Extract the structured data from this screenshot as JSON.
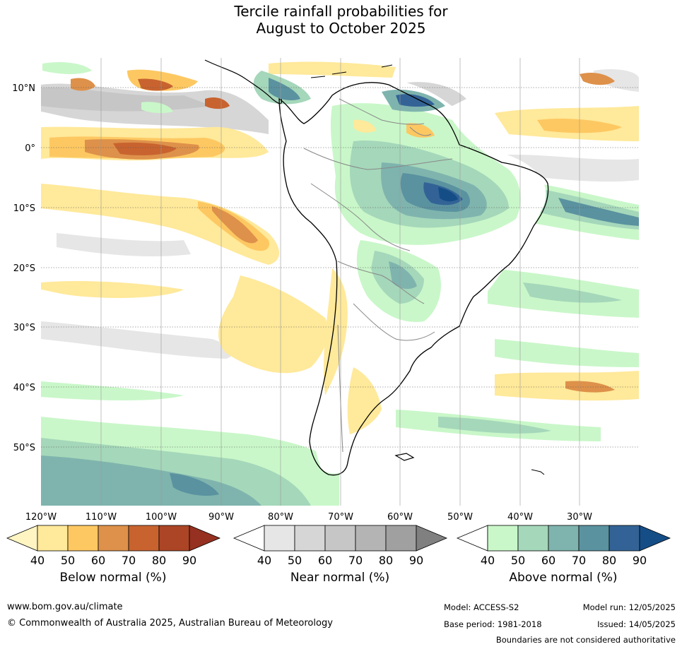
{
  "title": {
    "line1": "Tercile rainfall probabilities for",
    "line2": "August to October 2025"
  },
  "map": {
    "lat_labels": [
      "10°N",
      "0°",
      "10°S",
      "20°S",
      "30°S",
      "40°S",
      "50°S"
    ],
    "lon_labels": [
      "120°W",
      "110°W",
      "100°W",
      "90°W",
      "80°W",
      "70°W",
      "60°W",
      "50°W",
      "40°W",
      "30°W"
    ],
    "colors": {
      "ocean_base": "#ffffff",
      "coast": "#000000",
      "border": "#888888",
      "grid": "#555555"
    }
  },
  "colorbars": [
    {
      "label": "Below normal (%)",
      "ticks": [
        "40",
        "50",
        "60",
        "70",
        "80",
        "90"
      ],
      "colors": [
        "#fff5c2",
        "#ffe99a",
        "#fdc862",
        "#de914a",
        "#c8632f",
        "#ab4526",
        "#963020"
      ]
    },
    {
      "label": "Near normal (%)",
      "ticks": [
        "40",
        "50",
        "60",
        "70",
        "80",
        "90"
      ],
      "colors": [
        "#ffffff",
        "#e6e6e6",
        "#d6d6d6",
        "#c6c6c6",
        "#b4b4b4",
        "#a0a0a0",
        "#808080"
      ]
    },
    {
      "label": "Above normal (%)",
      "ticks": [
        "40",
        "50",
        "60",
        "70",
        "80",
        "90"
      ],
      "colors": [
        "#ffffff",
        "#c9f7c9",
        "#a5d7ba",
        "#7fb4ae",
        "#5a92a0",
        "#336396",
        "#154e87"
      ]
    }
  ],
  "footer": {
    "website": "www.bom.gov.au/climate",
    "copyright": "© Commonwealth of Australia 2025, Australian Bureau of Meteorology",
    "model": "Model: ACCESS-S2",
    "base_period": "Base period: 1981-2018",
    "model_run": "Model run: 12/05/2025",
    "issued": "Issued: 14/05/2025",
    "disclaimer": "Boundaries are not considered authoritative"
  }
}
